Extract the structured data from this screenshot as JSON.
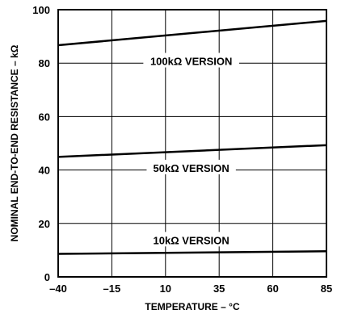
{
  "chart_data": {
    "type": "line",
    "xlabel": "TEMPERATURE – °C",
    "ylabel": "NOMINAL END-TO-END RESISTANCE – kΩ",
    "xlim": [
      -40,
      85
    ],
    "ylim": [
      0,
      100
    ],
    "x_ticks": [
      -40,
      -15,
      10,
      35,
      60,
      85
    ],
    "x_tick_labels": [
      "–40",
      "–15",
      "10",
      "35",
      "60",
      "85"
    ],
    "y_ticks": [
      0,
      20,
      40,
      60,
      80,
      100
    ],
    "y_tick_labels": [
      "0",
      "20",
      "40",
      "60",
      "80",
      "100"
    ],
    "grid": true,
    "x": [
      -40,
      85
    ],
    "series": [
      {
        "name": "100kΩ VERSION",
        "values": [
          86.7,
          95.8
        ],
        "label_at": [
          22,
          80.5
        ]
      },
      {
        "name": "50kΩ VERSION",
        "values": [
          44.9,
          49.3
        ],
        "label_at": [
          22,
          40.5
        ]
      },
      {
        "name": "10kΩ VERSION",
        "values": [
          8.6,
          9.6
        ],
        "label_at": [
          22,
          13.5
        ]
      }
    ]
  }
}
